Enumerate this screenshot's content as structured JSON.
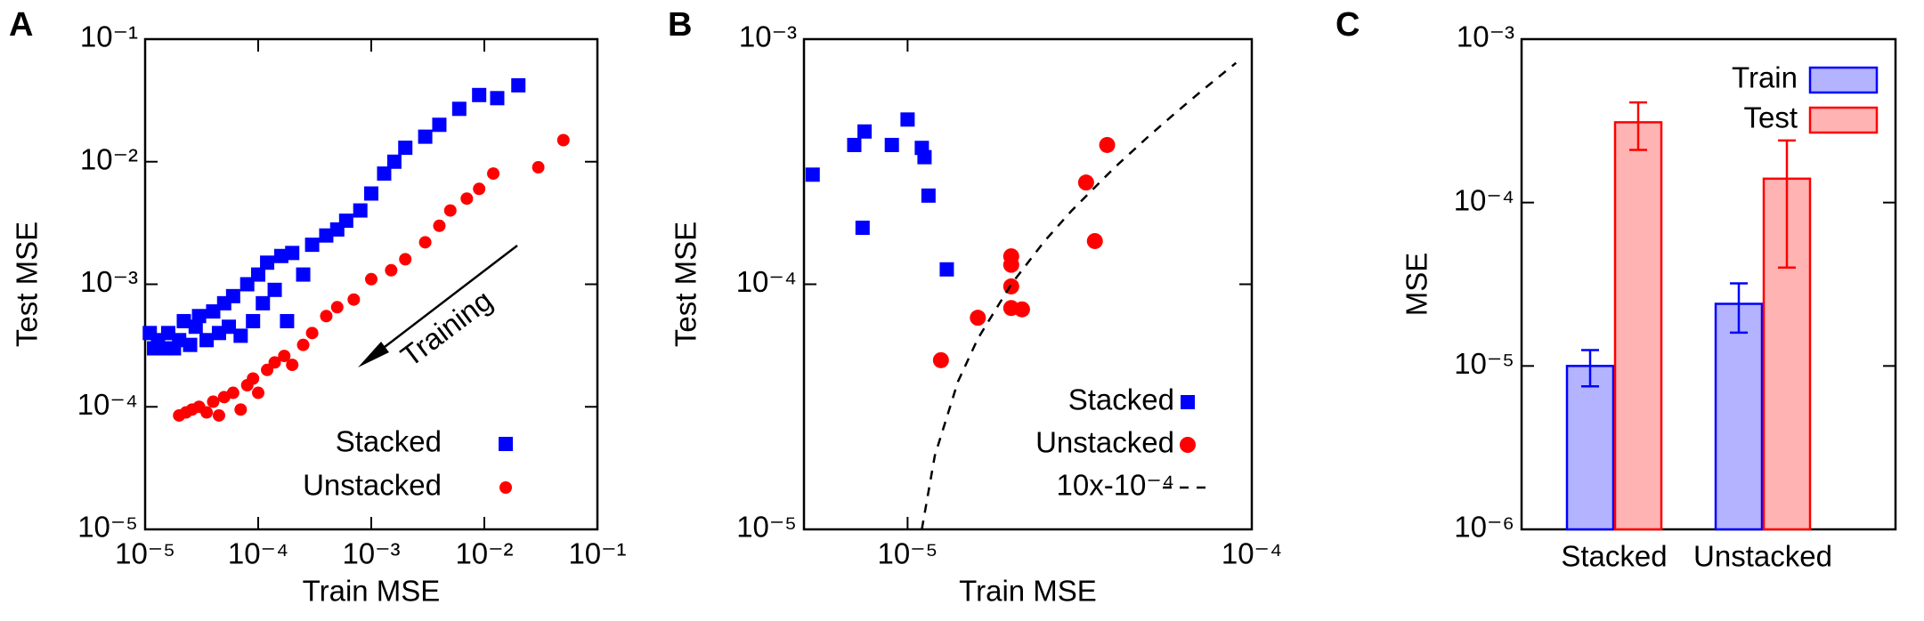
{
  "chart_data": [
    {
      "type": "scatter",
      "panel_label": "A",
      "xlabel": "Train MSE",
      "ylabel": "Test MSE",
      "xscale": "log",
      "yscale": "log",
      "xlim": [
        1e-05,
        0.1
      ],
      "ylim": [
        1e-05,
        0.1
      ],
      "xticks": [
        {
          "value": 1e-05,
          "label": "10⁻⁵"
        },
        {
          "value": 0.0001,
          "label": "10⁻⁴"
        },
        {
          "value": 0.001,
          "label": "10⁻³"
        },
        {
          "value": 0.01,
          "label": "10⁻²"
        },
        {
          "value": 0.1,
          "label": "10⁻¹"
        }
      ],
      "yticks": [
        {
          "value": 1e-05,
          "label": "10⁻⁵"
        },
        {
          "value": 0.0001,
          "label": "10⁻⁴"
        },
        {
          "value": 0.001,
          "label": "10⁻³"
        },
        {
          "value": 0.01,
          "label": "10⁻²"
        },
        {
          "value": 0.1,
          "label": "10⁻¹"
        }
      ],
      "legend": "lower right",
      "annotation": "Training",
      "series": [
        {
          "name": "Stacked",
          "color": "#0000ff",
          "marker": "square",
          "x": [
            1.1e-05,
            1.2e-05,
            1.3e-05,
            1.5e-05,
            1.6e-05,
            1.8e-05,
            2e-05,
            2.2e-05,
            2.5e-05,
            2.8e-05,
            3e-05,
            3.5e-05,
            4e-05,
            4.5e-05,
            5e-05,
            5.5e-05,
            6e-05,
            7e-05,
            8e-05,
            9e-05,
            0.0001,
            0.00011,
            0.00012,
            0.00014,
            0.00016,
            0.00018,
            0.0002,
            0.00025,
            0.0003,
            0.0004,
            0.0005,
            0.0006,
            0.0008,
            0.001,
            0.0013,
            0.0016,
            0.002,
            0.003,
            0.004,
            0.006,
            0.009,
            0.013,
            0.02
          ],
          "values": [
            0.0004,
            0.0003,
            0.00035,
            0.0003,
            0.0004,
            0.0003,
            0.00035,
            0.0005,
            0.00032,
            0.00045,
            0.00055,
            0.00035,
            0.0006,
            0.0004,
            0.0007,
            0.00045,
            0.0008,
            0.00038,
            0.001,
            0.0005,
            0.0012,
            0.0007,
            0.0015,
            0.0009,
            0.0017,
            0.0005,
            0.0018,
            0.0012,
            0.0021,
            0.0025,
            0.0028,
            0.0033,
            0.004,
            0.0055,
            0.008,
            0.01,
            0.013,
            0.016,
            0.02,
            0.027,
            0.035,
            0.033,
            0.042
          ]
        },
        {
          "name": "Unstacked",
          "color": "#ff0000",
          "marker": "circle",
          "x": [
            2e-05,
            2.3e-05,
            2.6e-05,
            3e-05,
            3.5e-05,
            4e-05,
            4.5e-05,
            5e-05,
            6e-05,
            7e-05,
            8e-05,
            9e-05,
            0.0001,
            0.00012,
            0.00014,
            0.00017,
            0.0002,
            0.00025,
            0.0003,
            0.0004,
            0.0005,
            0.0007,
            0.001,
            0.0015,
            0.002,
            0.003,
            0.004,
            0.005,
            0.007,
            0.009,
            0.012,
            0.03,
            0.05
          ],
          "values": [
            8.5e-05,
            9e-05,
            9.5e-05,
            0.0001,
            9e-05,
            0.00011,
            8.5e-05,
            0.00012,
            0.00013,
            9.5e-05,
            0.00015,
            0.00017,
            0.00013,
            0.0002,
            0.00023,
            0.00026,
            0.00022,
            0.00032,
            0.0004,
            0.00055,
            0.00065,
            0.00075,
            0.0011,
            0.0013,
            0.0016,
            0.0022,
            0.003,
            0.004,
            0.005,
            0.006,
            0.008,
            0.009,
            0.015
          ]
        }
      ]
    },
    {
      "type": "scatter",
      "panel_label": "B",
      "xlabel": "Train MSE",
      "ylabel": "Test MSE",
      "xscale": "log",
      "yscale": "log",
      "xlim": [
        5e-06,
        0.0001
      ],
      "ylim": [
        1e-05,
        0.001
      ],
      "xticks": [
        {
          "value": 1e-05,
          "label": "10⁻⁵"
        },
        {
          "value": 0.0001,
          "label": "10⁻⁴"
        }
      ],
      "yticks": [
        {
          "value": 1e-05,
          "label": "10⁻⁵"
        },
        {
          "value": 0.0001,
          "label": "10⁻⁴"
        },
        {
          "value": 0.001,
          "label": "10⁻³"
        }
      ],
      "legend": "lower right",
      "series": [
        {
          "name": "Stacked",
          "color": "#0000ff",
          "marker": "square",
          "x": [
            5.3e-06,
            7e-06,
            7.5e-06,
            7.4e-06,
            9e-06,
            1e-05,
            1.1e-05,
            1.12e-05,
            1.15e-05,
            1.3e-05
          ],
          "values": [
            0.00028,
            0.00037,
            0.00042,
            0.00017,
            0.00037,
            0.00047,
            0.00036,
            0.00033,
            0.00023,
            0.000115
          ]
        },
        {
          "name": "Unstacked",
          "color": "#ff0000",
          "marker": "circle",
          "x": [
            1.25e-05,
            1.6e-05,
            2e-05,
            2e-05,
            2e-05,
            2e-05,
            2.15e-05,
            3.3e-05,
            3.5e-05,
            3.8e-05
          ],
          "values": [
            4.9e-05,
            7.3e-05,
            0.00013,
            0.00012,
            9.8e-05,
            8e-05,
            7.9e-05,
            0.00026,
            0.00015,
            0.00037
          ]
        },
        {
          "name": "10x-10⁻⁴",
          "color": "#000000",
          "marker": "dashed-line",
          "x": [
            1.1e-05,
            1.2e-05,
            1.4e-05,
            1.6e-05,
            2e-05,
            2.5e-05,
            3e-05,
            4e-05,
            5e-05,
            6e-05,
            7e-05,
            8e-05,
            9e-05
          ],
          "values": [
            1e-05,
            2e-05,
            4e-05,
            6e-05,
            0.0001,
            0.00015,
            0.0002,
            0.0003,
            0.0004,
            0.0005,
            0.0006,
            0.0007,
            0.0008
          ]
        }
      ]
    },
    {
      "type": "bar",
      "panel_label": "C",
      "ylabel": "MSE",
      "yscale": "log",
      "ylim": [
        1e-06,
        0.001
      ],
      "yticks": [
        {
          "value": 1e-06,
          "label": "10⁻⁶"
        },
        {
          "value": 1e-05,
          "label": "10⁻⁵"
        },
        {
          "value": 0.0001,
          "label": "10⁻⁴"
        },
        {
          "value": 0.001,
          "label": "10⁻³"
        }
      ],
      "categories": [
        "Stacked",
        "Unstacked"
      ],
      "legend": "upper right",
      "series": [
        {
          "name": "Train",
          "color": "#0000ff",
          "fill": "#b3b3ff",
          "values": [
            1e-05,
            2.4e-05
          ],
          "errors": [
            2.5e-06,
            8e-06
          ]
        },
        {
          "name": "Test",
          "color": "#ff0000",
          "fill": "#ffb3b3",
          "values": [
            0.00031,
            0.00014
          ],
          "errors": [
            0.0001,
            0.0001
          ]
        }
      ]
    }
  ]
}
